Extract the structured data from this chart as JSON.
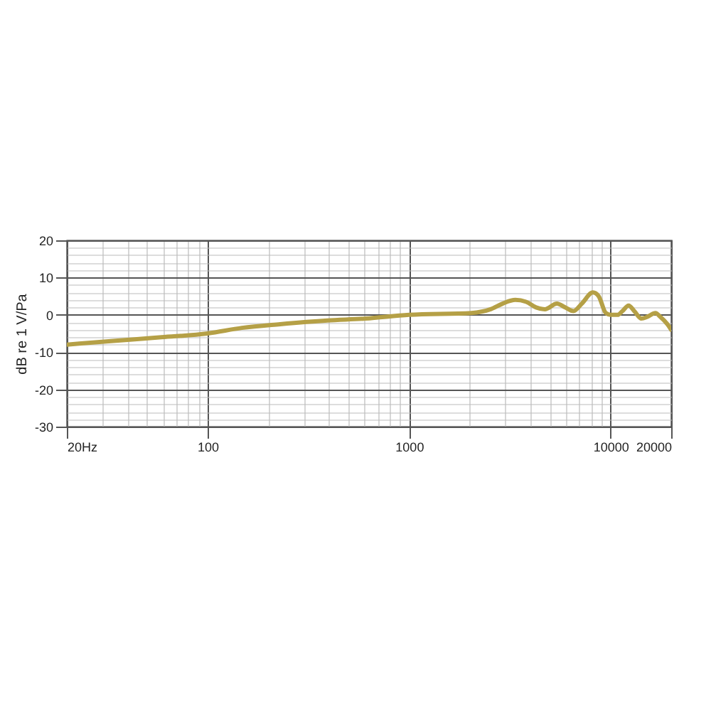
{
  "chart_data": {
    "type": "line",
    "ylabel": "dB re 1 V/Pa",
    "log": "x",
    "grid": true,
    "xlim": [
      20,
      20000
    ],
    "ylim": [
      -30,
      20
    ],
    "xticks": [
      {
        "value": 20,
        "label": "20Hz"
      },
      {
        "value": 30,
        "label": null
      },
      {
        "value": 40,
        "label": null
      },
      {
        "value": 50,
        "label": null
      },
      {
        "value": 60,
        "label": null
      },
      {
        "value": 70,
        "label": null
      },
      {
        "value": 80,
        "label": null
      },
      {
        "value": 90,
        "label": null
      },
      100,
      {
        "value": 200,
        "label": null
      },
      {
        "value": 300,
        "label": null
      },
      {
        "value": 400,
        "label": null
      },
      {
        "value": 500,
        "label": null
      },
      {
        "value": 600,
        "label": null
      },
      {
        "value": 700,
        "label": null
      },
      {
        "value": 800,
        "label": null
      },
      {
        "value": 900,
        "label": null
      },
      1000,
      {
        "value": 2000,
        "label": null
      },
      {
        "value": 3000,
        "label": null
      },
      {
        "value": 4000,
        "label": null
      },
      {
        "value": 5000,
        "label": null
      },
      {
        "value": 6000,
        "label": null
      },
      {
        "value": 7000,
        "label": null
      },
      {
        "value": 8000,
        "label": null
      },
      {
        "value": 9000,
        "label": null
      },
      10000,
      20000
    ],
    "yticks": [
      -30,
      {
        "value": -28,
        "label": null
      },
      {
        "value": -26,
        "label": null
      },
      {
        "value": -24,
        "label": null
      },
      {
        "value": -22,
        "label": null
      },
      -20,
      {
        "value": -18,
        "label": null
      },
      {
        "value": -16,
        "label": null
      },
      {
        "value": -14,
        "label": null
      },
      {
        "value": -12,
        "label": null
      },
      -10,
      {
        "value": -8,
        "label": null
      },
      {
        "value": -6,
        "label": null
      },
      {
        "value": -4,
        "label": null
      },
      {
        "value": -2,
        "label": null
      },
      0,
      {
        "value": 2,
        "label": null
      },
      {
        "value": 4,
        "label": null
      },
      {
        "value": 6,
        "label": null
      },
      {
        "value": 8,
        "label": null
      },
      10,
      {
        "value": 12,
        "label": null
      },
      {
        "value": 14,
        "label": null
      },
      {
        "value": 16,
        "label": null
      },
      {
        "value": 18,
        "label": null
      },
      20
    ],
    "x": [
      20,
      34,
      59,
      100,
      148,
      229,
      393,
      608,
      1000,
      2040,
      2540,
      2910,
      3370,
      3810,
      4270,
      4720,
      5420,
      5950,
      6540,
      7200,
      8170,
      8730,
      9470,
      10000,
      10850,
      11450,
      12290,
      13120,
      14230,
      15270,
      16710,
      17650,
      19140,
      20000
    ],
    "series": [
      {
        "color": "#b5a046",
        "values": [
          -8,
          -7,
          -6,
          -5,
          -3.5,
          -2.5,
          -1.5,
          -1,
          0,
          0.5,
          1.5,
          3,
          4,
          3.5,
          2,
          1.5,
          3,
          2,
          1,
          3,
          6,
          5,
          0.5,
          0,
          0,
          1,
          2.5,
          1,
          -1,
          -0.5,
          0.5,
          -0.5,
          -2.5,
          -4
        ]
      }
    ]
  }
}
